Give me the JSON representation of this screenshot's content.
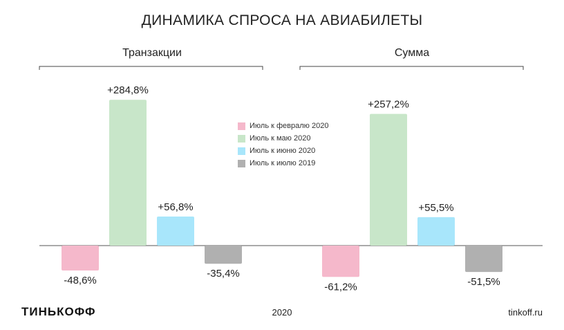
{
  "chart_data": {
    "type": "bar",
    "title": "ДИНАМИКА СПРОСА НА АВИАБИЛЕТЫ",
    "categories": [
      "Транзакции",
      "Сумма"
    ],
    "series": [
      {
        "name": "Июль к февралю 2020",
        "color": "#f5b8cb",
        "values": [
          -48.6,
          -61.2
        ],
        "labels": [
          "-48,6%",
          "-61,2%"
        ]
      },
      {
        "name": "Июль к маю 2020",
        "color": "#c8e6c9",
        "values": [
          284.8,
          257.2
        ],
        "labels": [
          "+284,8%",
          "+257,2%"
        ]
      },
      {
        "name": "Июль к июню 2020",
        "color": "#a8e6fb",
        "values": [
          56.8,
          55.5
        ],
        "labels": [
          "+56,8%",
          "+55,5%"
        ]
      },
      {
        "name": "Июль к июлю 2019",
        "color": "#b0b0b0",
        "values": [
          -35.4,
          -51.5
        ],
        "labels": [
          "-35,4%",
          "-51,5%"
        ]
      }
    ],
    "legend_position": "center",
    "grid": false
  },
  "footer": {
    "brand": "ТИНЬКОФФ",
    "year": "2020",
    "site": "tinkoff.ru"
  }
}
